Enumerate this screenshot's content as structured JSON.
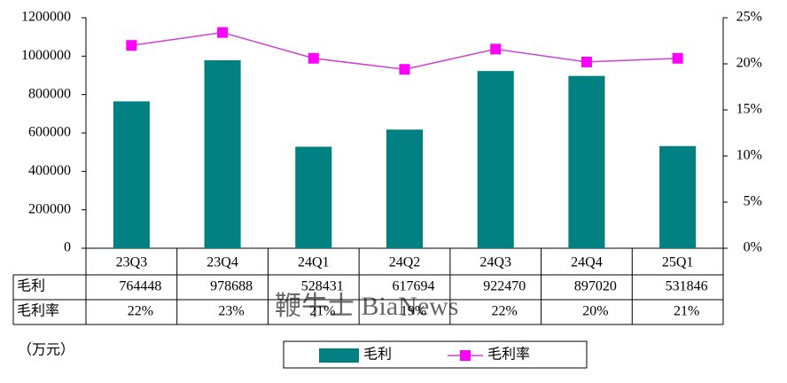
{
  "chart_data": {
    "type": "bar_line",
    "categories": [
      "23Q3",
      "23Q4",
      "24Q1",
      "24Q2",
      "24Q3",
      "24Q4",
      "25Q1"
    ],
    "series": [
      {
        "name": "毛利",
        "type": "bar",
        "color": "#008080",
        "values": [
          764448,
          978688,
          528431,
          617694,
          922470,
          897020,
          531846
        ]
      },
      {
        "name": "毛利率",
        "type": "line",
        "axis": "y2",
        "color": "#ff00ff",
        "values": [
          22.0,
          23.4,
          20.6,
          19.4,
          21.6,
          20.2,
          20.6
        ],
        "value_labels": [
          "22%",
          "23%",
          "21%",
          "19%",
          "22%",
          "20%",
          "21%"
        ]
      }
    ],
    "ylim": [
      0,
      1200000
    ],
    "yticks": [
      0,
      200000,
      400000,
      600000,
      800000,
      1000000,
      1200000
    ],
    "y2lim": [
      0,
      25
    ],
    "y2ticks": [
      {
        "value": 0,
        "label": "0%"
      },
      {
        "value": 5,
        "label": "5%"
      },
      {
        "value": 10,
        "label": "10%"
      },
      {
        "value": 15,
        "label": "15%"
      },
      {
        "value": 20,
        "label": "20%"
      },
      {
        "value": 25,
        "label": "25%"
      }
    ],
    "y_label": "（万元）",
    "watermark": "鞭牛士 BiaNews",
    "legend": "bottom"
  }
}
